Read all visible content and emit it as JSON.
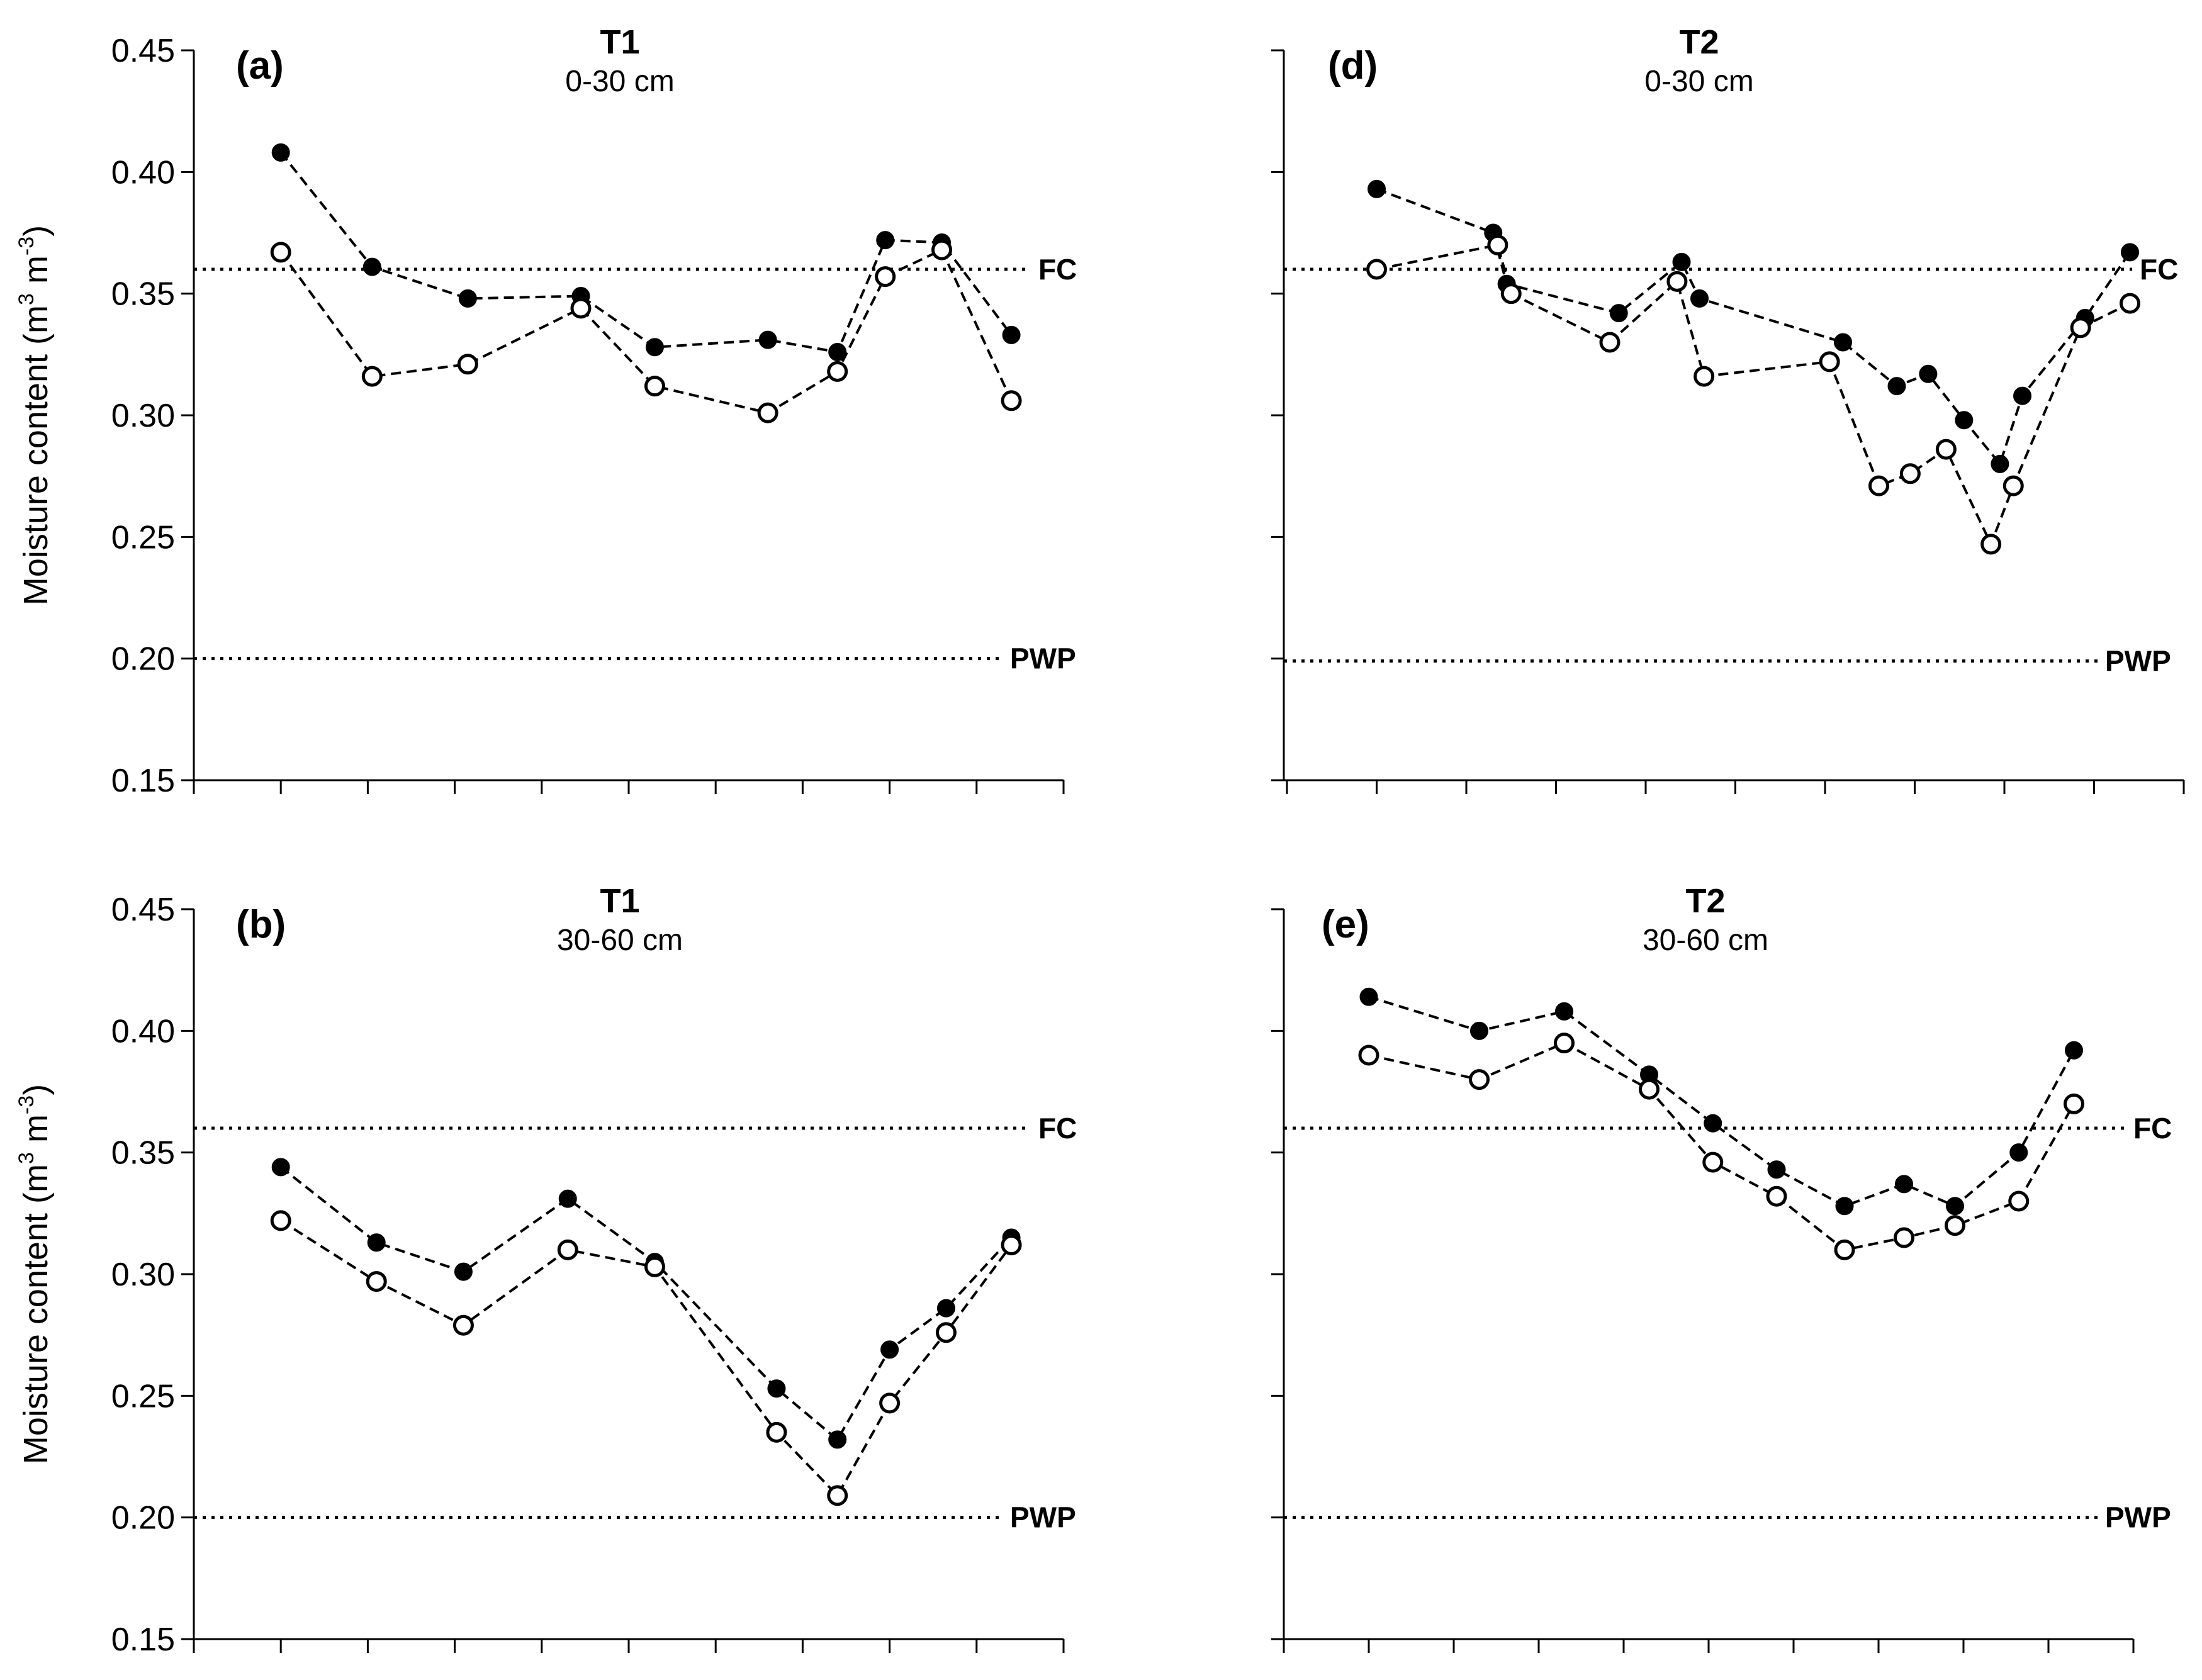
{
  "chart_data": [
    {
      "id": "a",
      "type": "line",
      "panel_label": "(a)",
      "title": "T1",
      "subtitle": "0-30 cm",
      "ylabel": "Moisture content (m3 m-3)",
      "ylim": [
        0.15,
        0.45
      ],
      "yticks": [
        "0.15",
        "0.20",
        "0.25",
        "0.30",
        "0.35",
        "0.40",
        "0.45"
      ],
      "xlim": [
        0,
        10
      ],
      "xticks": [
        0,
        1,
        2,
        3,
        4,
        5,
        6,
        7,
        8,
        9,
        10
      ],
      "reference_lines": [
        {
          "label": "FC",
          "value": 0.36
        },
        {
          "label": "PWP",
          "value": 0.2
        }
      ],
      "series": [
        {
          "name": "filled",
          "marker": "filled-circle",
          "x": [
            1,
            2.05,
            3.15,
            4.45,
            5.3,
            6.6,
            7.4,
            7.95,
            8.6,
            9.4
          ],
          "y": [
            0.408,
            0.361,
            0.348,
            0.349,
            0.328,
            0.331,
            0.326,
            0.372,
            0.371,
            0.333
          ]
        },
        {
          "name": "open",
          "marker": "open-circle",
          "x": [
            1,
            2.05,
            3.15,
            4.45,
            5.3,
            6.6,
            7.4,
            7.95,
            8.6,
            9.4
          ],
          "y": [
            0.367,
            0.316,
            0.321,
            0.344,
            0.312,
            0.301,
            0.318,
            0.357,
            0.368,
            0.306
          ]
        }
      ]
    },
    {
      "id": "d",
      "type": "line",
      "panel_label": "(d)",
      "title": "T2",
      "subtitle": "0-30 cm",
      "ylim": [
        0.15,
        0.45
      ],
      "xlim": [
        0,
        10
      ],
      "xticks": [
        0,
        1,
        2,
        3,
        4,
        5,
        6,
        7,
        8,
        9,
        10
      ],
      "reference_lines": [
        {
          "label": "FC",
          "value": 0.36
        },
        {
          "label": "PWP",
          "value": 0.199
        }
      ],
      "series": [
        {
          "name": "filled",
          "marker": "filled-circle",
          "x": [
            1,
            2.3,
            2.45,
            3.7,
            4.4,
            4.6,
            6.2,
            6.8,
            7.15,
            7.55,
            7.95,
            8.2,
            8.9,
            9.4
          ],
          "y": [
            0.393,
            0.375,
            0.354,
            0.342,
            0.363,
            0.348,
            0.33,
            0.312,
            0.317,
            0.298,
            0.28,
            0.308,
            0.34,
            0.367
          ]
        },
        {
          "name": "open",
          "marker": "open-circle",
          "x": [
            1,
            2.35,
            2.5,
            3.6,
            4.35,
            4.65,
            6.05,
            6.6,
            6.95,
            7.35,
            7.85,
            8.1,
            8.85,
            9.4
          ],
          "y": [
            0.36,
            0.37,
            0.35,
            0.33,
            0.355,
            0.316,
            0.322,
            0.271,
            0.276,
            0.286,
            0.247,
            0.271,
            0.336,
            0.346
          ]
        }
      ]
    },
    {
      "id": "b",
      "type": "line",
      "panel_label": "(b)",
      "title": "T1",
      "subtitle": "30-60 cm",
      "ylabel": "Moisture content (m3 m-3)",
      "ylim": [
        0.15,
        0.45
      ],
      "yticks": [
        "0.15",
        "0.20",
        "0.25",
        "0.30",
        "0.35",
        "0.40",
        "0.45"
      ],
      "xlim": [
        0,
        10
      ],
      "xticks": [
        0,
        1,
        2,
        3,
        4,
        5,
        6,
        7,
        8,
        9,
        10
      ],
      "reference_lines": [
        {
          "label": "FC",
          "value": 0.36
        },
        {
          "label": "PWP",
          "value": 0.2
        }
      ],
      "series": [
        {
          "name": "filled",
          "marker": "filled-circle",
          "x": [
            1,
            2.1,
            3.1,
            4.3,
            5.3,
            6.7,
            7.4,
            8.0,
            8.65,
            9.4
          ],
          "y": [
            0.344,
            0.313,
            0.301,
            0.331,
            0.305,
            0.253,
            0.232,
            0.269,
            0.286,
            0.315
          ]
        },
        {
          "name": "open",
          "marker": "open-circle",
          "x": [
            1,
            2.1,
            3.1,
            4.3,
            5.3,
            6.7,
            7.4,
            8.0,
            8.65,
            9.4
          ],
          "y": [
            0.322,
            0.297,
            0.279,
            0.31,
            0.303,
            0.235,
            0.209,
            0.247,
            0.276,
            0.312
          ]
        }
      ]
    },
    {
      "id": "e",
      "type": "line",
      "panel_label": "(e)",
      "title": "T2",
      "subtitle": "30-60 cm",
      "ylim": [
        0.15,
        0.45
      ],
      "xlim": [
        0,
        10
      ],
      "xticks": [
        0,
        1,
        2,
        3,
        4,
        5,
        6,
        7,
        8,
        9,
        10
      ],
      "reference_lines": [
        {
          "label": "FC",
          "value": 0.36
        },
        {
          "label": "PWP",
          "value": 0.2
        }
      ],
      "series": [
        {
          "name": "filled",
          "marker": "filled-circle",
          "x": [
            1,
            2.3,
            3.3,
            4.3,
            5.05,
            5.8,
            6.6,
            7.3,
            7.9,
            8.65,
            9.3
          ],
          "y": [
            0.414,
            0.4,
            0.408,
            0.382,
            0.362,
            0.343,
            0.328,
            0.337,
            0.328,
            0.35,
            0.392
          ]
        },
        {
          "name": "open",
          "marker": "open-circle",
          "x": [
            1,
            2.3,
            3.3,
            4.3,
            5.05,
            5.8,
            6.6,
            7.3,
            7.9,
            8.65,
            9.3
          ],
          "y": [
            0.39,
            0.38,
            0.395,
            0.376,
            0.346,
            0.332,
            0.31,
            0.315,
            0.32,
            0.33,
            0.37
          ]
        }
      ]
    }
  ]
}
